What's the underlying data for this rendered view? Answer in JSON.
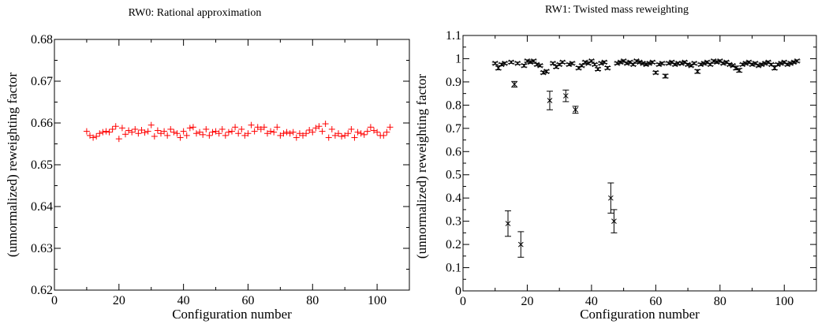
{
  "chart_data": [
    {
      "type": "scatter",
      "title": "RW0: Rational approximation",
      "xlabel": "Configuration number",
      "ylabel": "(unnormalized) reweighting factor",
      "xlim": [
        0,
        110
      ],
      "ylim": [
        0.62,
        0.68
      ],
      "xticks": [
        0,
        20,
        40,
        60,
        80,
        100
      ],
      "yticks": [
        0.62,
        0.63,
        0.64,
        0.65,
        0.66,
        0.67,
        0.68
      ],
      "ytick_labels": [
        "0.62",
        "0.63",
        "0.64",
        "0.65",
        "0.66",
        "0.67",
        "0.68"
      ],
      "marker": "plus",
      "color": "#ff0000",
      "series": [
        {
          "x": [
            10,
            11,
            12,
            13,
            14,
            15,
            16,
            17,
            18,
            19,
            20,
            21,
            22,
            23,
            24,
            25,
            26,
            27,
            28,
            29,
            30,
            31,
            32,
            33,
            34,
            35,
            36,
            37,
            38,
            39,
            40,
            41,
            42,
            43,
            44,
            45,
            46,
            47,
            48,
            49,
            50,
            51,
            52,
            53,
            54,
            55,
            56,
            57,
            58,
            59,
            60,
            61,
            62,
            63,
            64,
            65,
            66,
            67,
            68,
            69,
            70,
            71,
            72,
            73,
            74,
            75,
            76,
            77,
            78,
            79,
            80,
            81,
            82,
            83,
            84,
            85,
            86,
            87,
            88,
            89,
            90,
            91,
            92,
            93,
            94,
            95,
            96,
            97,
            98,
            99,
            100,
            101,
            102,
            103,
            104
          ],
          "y": [
            0.658,
            0.657,
            0.6565,
            0.6568,
            0.6575,
            0.6578,
            0.658,
            0.6578,
            0.6585,
            0.6592,
            0.6562,
            0.6588,
            0.6573,
            0.6582,
            0.6578,
            0.6585,
            0.6575,
            0.6583,
            0.6577,
            0.658,
            0.6595,
            0.6568,
            0.6582,
            0.6575,
            0.658,
            0.657,
            0.6585,
            0.6578,
            0.6575,
            0.6565,
            0.658,
            0.657,
            0.6588,
            0.659,
            0.6575,
            0.6578,
            0.6572,
            0.6585,
            0.657,
            0.6578,
            0.658,
            0.6575,
            0.6585,
            0.657,
            0.6578,
            0.658,
            0.659,
            0.6575,
            0.6585,
            0.657,
            0.6575,
            0.6595,
            0.658,
            0.659,
            0.6585,
            0.659,
            0.6575,
            0.658,
            0.6578,
            0.659,
            0.657,
            0.6575,
            0.6578,
            0.6575,
            0.6578,
            0.6565,
            0.6575,
            0.657,
            0.6575,
            0.6583,
            0.6578,
            0.6588,
            0.6592,
            0.658,
            0.6598,
            0.6565,
            0.6585,
            0.657,
            0.6575,
            0.6568,
            0.657,
            0.6575,
            0.6585,
            0.6565,
            0.6578,
            0.6575,
            0.6572,
            0.658,
            0.659,
            0.6582,
            0.6578,
            0.657,
            0.657,
            0.6578,
            0.659
          ],
          "yerr": []
        }
      ]
    },
    {
      "type": "scatter",
      "title": "RW1: Twisted mass reweighting",
      "xlabel": "Configuration number",
      "ylabel": "(unnormalized) reweighting factor",
      "xlim": [
        0,
        110
      ],
      "ylim": [
        0,
        1.1
      ],
      "xticks": [
        0,
        20,
        40,
        60,
        80,
        100
      ],
      "yticks": [
        0,
        0.1,
        0.2,
        0.3,
        0.4,
        0.5,
        0.6,
        0.7,
        0.8,
        0.9,
        1.0,
        1.1
      ],
      "ytick_labels": [
        "0",
        "0.1",
        "0.2",
        "0.3",
        "0.4",
        "0.5",
        "0.6",
        "0.7",
        "0.8",
        "0.9",
        "1",
        "1.1"
      ],
      "marker": "cross",
      "color": "#000000",
      "series": [
        {
          "x": [
            10,
            11,
            12,
            13,
            14,
            15,
            16,
            17,
            18,
            19,
            20,
            21,
            22,
            23,
            24,
            25,
            26,
            27,
            28,
            29,
            30,
            31,
            32,
            33,
            34,
            35,
            36,
            37,
            38,
            39,
            40,
            41,
            42,
            43,
            44,
            45,
            46,
            47,
            48,
            49,
            50,
            51,
            52,
            53,
            54,
            55,
            56,
            57,
            58,
            59,
            60,
            61,
            62,
            63,
            64,
            65,
            66,
            67,
            68,
            69,
            70,
            71,
            72,
            73,
            74,
            75,
            76,
            77,
            78,
            79,
            80,
            81,
            82,
            83,
            84,
            85,
            86,
            87,
            88,
            89,
            90,
            91,
            92,
            93,
            94,
            95,
            96,
            97,
            98,
            99,
            100,
            101,
            102,
            103,
            104
          ],
          "y": [
            0.98,
            0.96,
            0.975,
            0.98,
            0.29,
            0.985,
            0.89,
            0.98,
            0.2,
            0.97,
            0.99,
            0.985,
            0.99,
            0.975,
            0.97,
            0.94,
            0.945,
            0.82,
            0.98,
            0.965,
            0.975,
            0.985,
            0.84,
            0.975,
            0.98,
            0.78,
            0.96,
            0.97,
            0.985,
            0.98,
            0.99,
            0.975,
            0.955,
            0.98,
            0.985,
            0.96,
            0.4,
            0.3,
            0.98,
            0.985,
            0.99,
            0.98,
            0.985,
            0.975,
            0.99,
            0.985,
            0.98,
            0.975,
            0.98,
            0.985,
            0.94,
            0.975,
            0.98,
            0.925,
            0.98,
            0.985,
            0.975,
            0.98,
            0.98,
            0.985,
            0.975,
            0.97,
            0.98,
            0.945,
            0.975,
            0.98,
            0.985,
            0.975,
            0.99,
            0.985,
            0.99,
            0.98,
            0.985,
            0.975,
            0.97,
            0.96,
            0.95,
            0.975,
            0.98,
            0.985,
            0.975,
            0.98,
            0.97,
            0.975,
            0.98,
            0.985,
            0.975,
            0.96,
            0.975,
            0.98,
            0.985,
            0.975,
            0.98,
            0.985,
            0.99
          ],
          "yerr": [
            0.005,
            0.008,
            0.005,
            0.005,
            0.055,
            0.005,
            0.012,
            0.005,
            0.055,
            0.006,
            0.005,
            0.005,
            0.005,
            0.005,
            0.005,
            0.006,
            0.006,
            0.04,
            0.005,
            0.006,
            0.005,
            0.005,
            0.025,
            0.005,
            0.005,
            0.015,
            0.006,
            0.005,
            0.005,
            0.005,
            0.005,
            0.005,
            0.006,
            0.005,
            0.005,
            0.006,
            0.065,
            0.05,
            0.005,
            0.005,
            0.005,
            0.005,
            0.005,
            0.005,
            0.005,
            0.005,
            0.005,
            0.005,
            0.005,
            0.005,
            0.006,
            0.005,
            0.005,
            0.008,
            0.005,
            0.005,
            0.005,
            0.005,
            0.005,
            0.005,
            0.005,
            0.005,
            0.005,
            0.008,
            0.005,
            0.005,
            0.005,
            0.005,
            0.005,
            0.005,
            0.005,
            0.005,
            0.005,
            0.005,
            0.005,
            0.008,
            0.008,
            0.005,
            0.005,
            0.005,
            0.005,
            0.005,
            0.005,
            0.005,
            0.005,
            0.005,
            0.005,
            0.008,
            0.005,
            0.005,
            0.005,
            0.005,
            0.005,
            0.005,
            0.005
          ]
        }
      ]
    }
  ]
}
